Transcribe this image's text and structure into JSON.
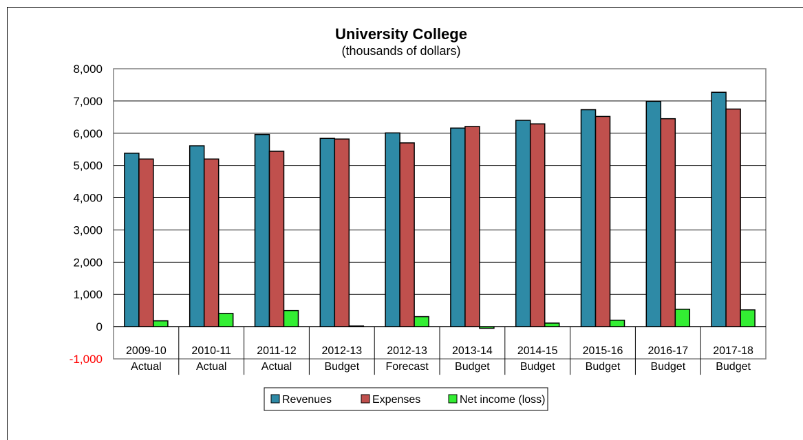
{
  "chart_data": {
    "type": "bar",
    "title": "University College",
    "subtitle": "(thousands of dollars)",
    "categories": [
      [
        "2009-10",
        "Actual"
      ],
      [
        "2010-11",
        "Actual"
      ],
      [
        "2011-12",
        "Actual"
      ],
      [
        "2012-13",
        "Budget"
      ],
      [
        "2012-13",
        "Forecast"
      ],
      [
        "2013-14",
        "Budget"
      ],
      [
        "2014-15",
        "Budget"
      ],
      [
        "2015-16",
        "Budget"
      ],
      [
        "2016-17",
        "Budget"
      ],
      [
        "2017-18",
        "Budget"
      ]
    ],
    "series": [
      {
        "name": "Revenues",
        "color": "#2e8aa6",
        "values": [
          5380,
          5610,
          5960,
          5840,
          6010,
          6160,
          6400,
          6730,
          6990,
          7270
        ]
      },
      {
        "name": "Expenses",
        "color": "#c0504d",
        "values": [
          5200,
          5200,
          5440,
          5820,
          5700,
          6210,
          6290,
          6520,
          6450,
          6750
        ]
      },
      {
        "name": "Net income (loss)",
        "color": "#33ee33",
        "values": [
          180,
          410,
          500,
          20,
          310,
          -50,
          110,
          200,
          540,
          520
        ]
      }
    ],
    "ylim": [
      -1000,
      8000
    ],
    "yticks": [
      "8,000",
      "7,000",
      "6,000",
      "5,000",
      "4,000",
      "3,000",
      "2,000",
      "1,000",
      "0",
      "-1,000"
    ],
    "ytick_values": [
      8000,
      7000,
      6000,
      5000,
      4000,
      3000,
      2000,
      1000,
      0,
      -1000
    ],
    "grid": true,
    "legend_position": "bottom-center"
  }
}
